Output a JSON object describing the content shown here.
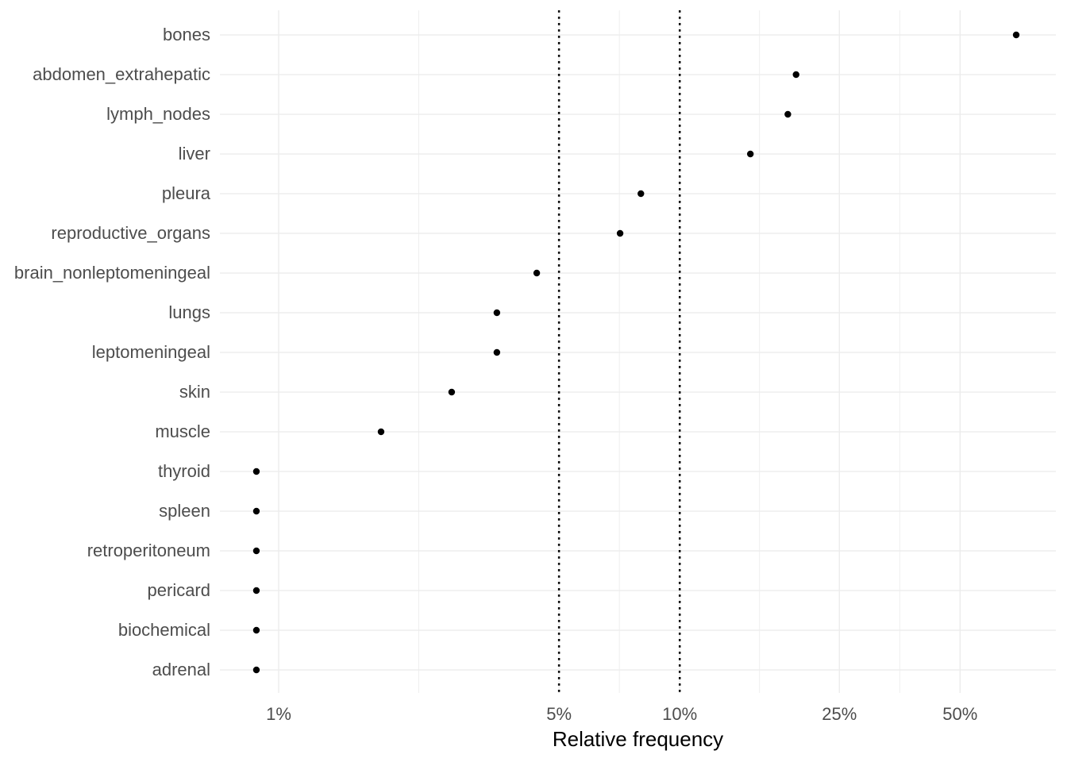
{
  "chart_data": {
    "type": "scatter",
    "variant": "horizontal-dot-plot",
    "title": "",
    "xlabel": "Relative frequency",
    "ylabel": "",
    "x_scale": "log10",
    "xlim": [
      0.7137,
      86.66
    ],
    "x_major_ticks": [
      1,
      5,
      10,
      25,
      50
    ],
    "x_tick_labels": [
      "1%",
      "5%",
      "10%",
      "25%",
      "50%"
    ],
    "x_minor_ticks": [
      2.2361,
      7.0711,
      15.8114,
      35.3553
    ],
    "reference_lines_x": [
      5,
      10
    ],
    "grid": "on",
    "legend": "none",
    "categories": [
      "bones",
      "abdomen_extrahepatic",
      "lymph_nodes",
      "liver",
      "pleura",
      "reproductive_organs",
      "brain_nonleptomeningeal",
      "lungs",
      "leptomeningeal",
      "skin",
      "muscle",
      "thyroid",
      "spleen",
      "retroperitoneum",
      "pericard",
      "biochemical",
      "adrenal"
    ],
    "values_percent": [
      69.0,
      19.5,
      18.6,
      15.0,
      8.0,
      7.1,
      4.4,
      3.5,
      3.5,
      2.7,
      1.8,
      0.88,
      0.88,
      0.88,
      0.88,
      0.88,
      0.88
    ]
  },
  "colors": {
    "background": "#FFFFFF",
    "grid_major": "#EBEBEB",
    "grid_minor": "#EBEBEB",
    "axis_text": "#4D4D4D",
    "axis_title": "#000000",
    "point": "#000000",
    "reference_line": "#000000"
  }
}
